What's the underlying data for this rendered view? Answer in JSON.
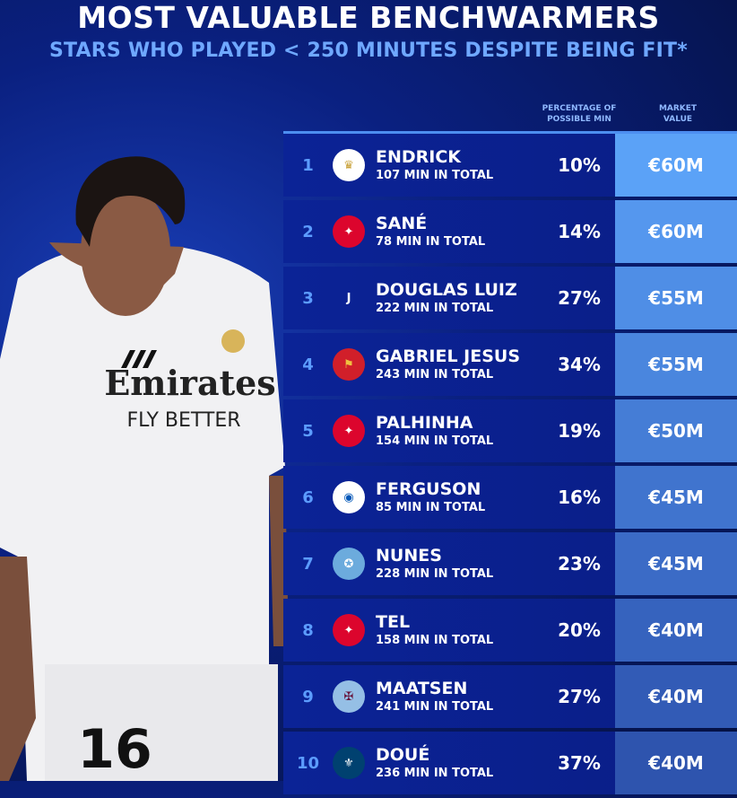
{
  "title": "MOST VALUABLE BENCHWARMERS",
  "subtitle": "STARS WHO PLAYED < 250 MINUTES DESPITE BEING FIT*",
  "columns": {
    "percentage": "PERCENTAGE OF POSSIBLE MIN",
    "value": "MARKET VALUE"
  },
  "photo": {
    "shirt_sponsor": "Emirates FLY BETTER",
    "shirt_number": "16"
  },
  "rows": [
    {
      "rank": "1",
      "name": "ENDRICK",
      "minutes": "107 MIN IN TOTAL",
      "percent": "10%",
      "value": "€60M",
      "club_icon": "real-madrid-crest",
      "color": "#5ba2f7"
    },
    {
      "rank": "2",
      "name": "SANÉ",
      "minutes": "78 MIN IN TOTAL",
      "percent": "14%",
      "value": "€60M",
      "club_icon": "bayern-crest",
      "color": "#5597ee"
    },
    {
      "rank": "3",
      "name": "DOUGLAS LUIZ",
      "minutes": "222 MIN IN TOTAL",
      "percent": "27%",
      "value": "€55M",
      "club_icon": "juventus-crest",
      "color": "#4f8ee6"
    },
    {
      "rank": "4",
      "name": "GABRIEL JESUS",
      "minutes": "243 MIN IN TOTAL",
      "percent": "34%",
      "value": "€55M",
      "club_icon": "arsenal-crest",
      "color": "#4a86de"
    },
    {
      "rank": "5",
      "name": "PALHINHA",
      "minutes": "154 MIN IN TOTAL",
      "percent": "19%",
      "value": "€50M",
      "club_icon": "bayern-crest",
      "color": "#457dd6"
    },
    {
      "rank": "6",
      "name": "FERGUSON",
      "minutes": "85 MIN IN TOTAL",
      "percent": "16%",
      "value": "€45M",
      "club_icon": "brighton-crest",
      "color": "#4074ce"
    },
    {
      "rank": "7",
      "name": "NUNES",
      "minutes": "228 MIN IN TOTAL",
      "percent": "23%",
      "value": "€45M",
      "club_icon": "man-city-crest",
      "color": "#3b6bc6"
    },
    {
      "rank": "8",
      "name": "TEL",
      "minutes": "158 MIN IN TOTAL",
      "percent": "20%",
      "value": "€40M",
      "club_icon": "bayern-crest",
      "color": "#3663be"
    },
    {
      "rank": "9",
      "name": "MAATSEN",
      "minutes": "241 MIN IN TOTAL",
      "percent": "27%",
      "value": "€40M",
      "club_icon": "aston-villa-crest",
      "color": "#325bb6"
    },
    {
      "rank": "10",
      "name": "DOUÉ",
      "minutes": "236 MIN IN TOTAL",
      "percent": "37%",
      "value": "€40M",
      "club_icon": "psg-crest",
      "color": "#2e54ae"
    }
  ]
}
